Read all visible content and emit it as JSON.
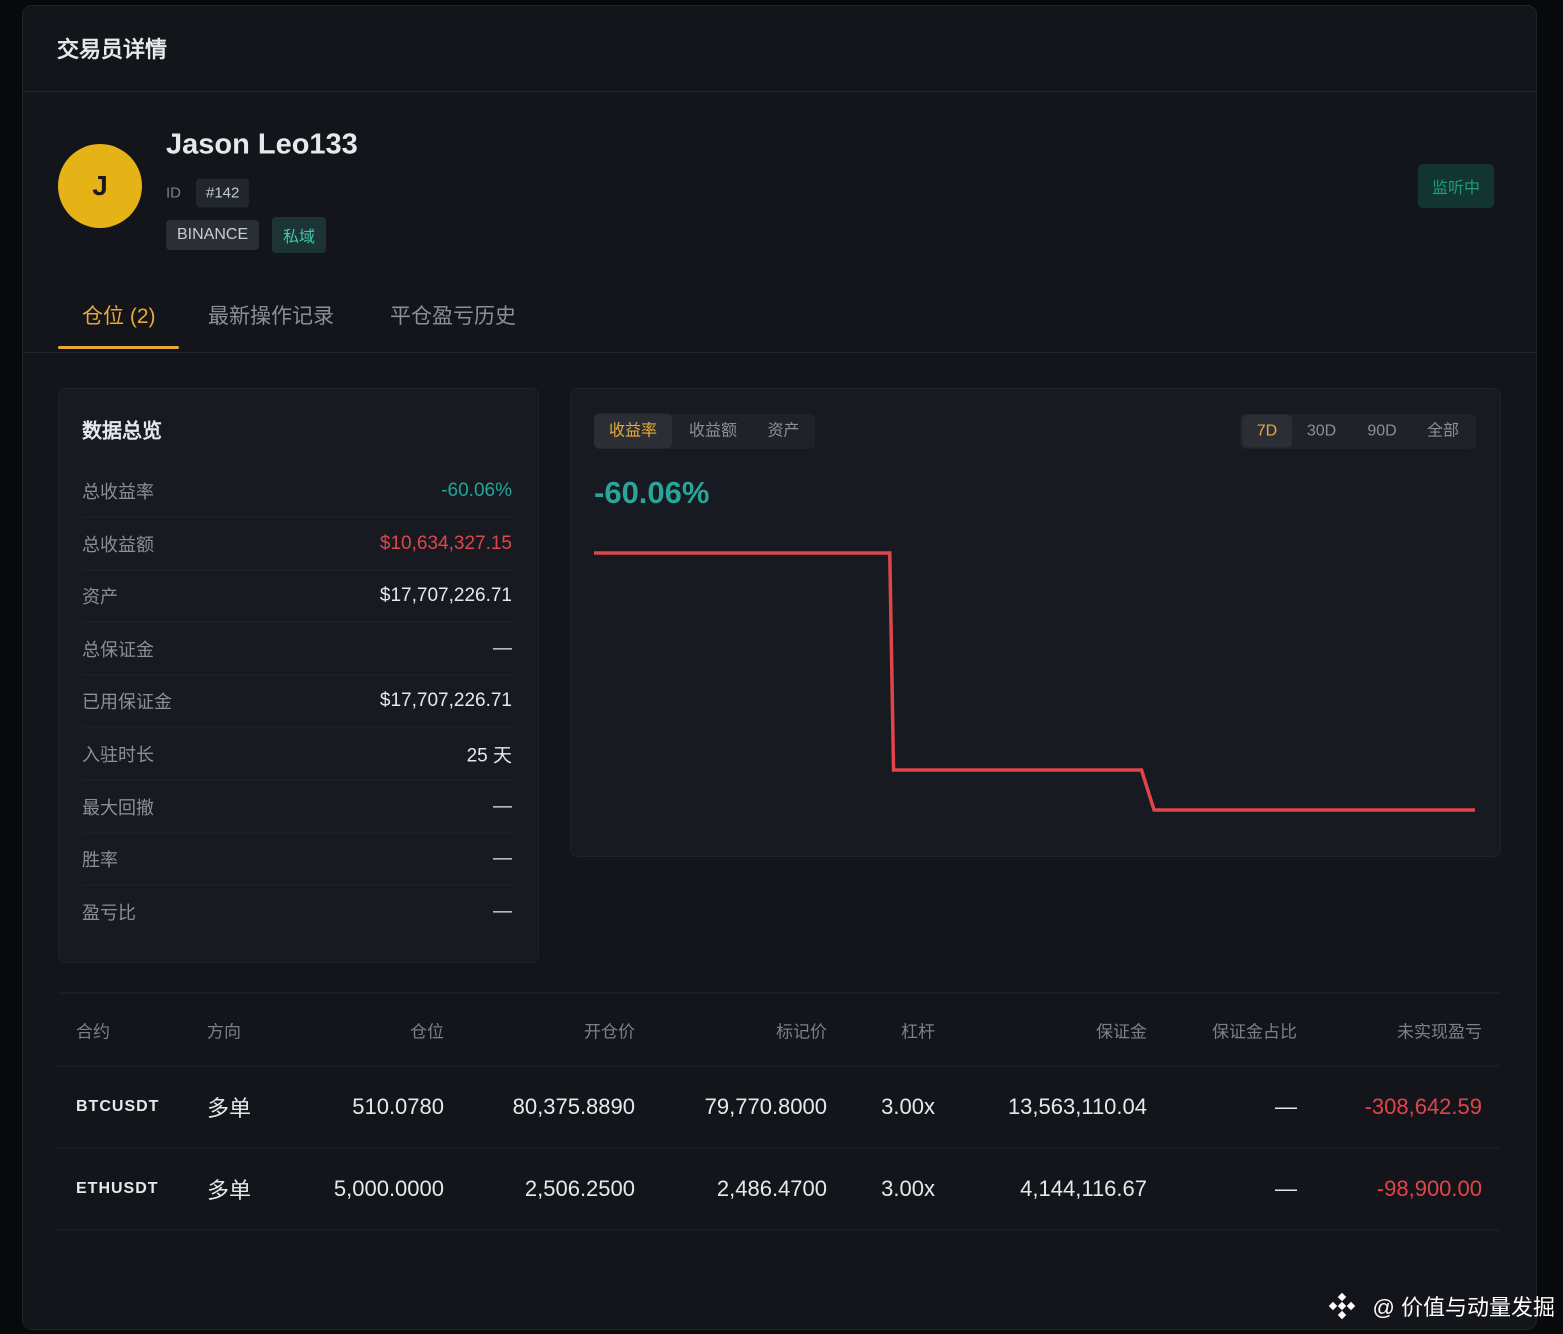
{
  "header": {
    "title": "交易员详情"
  },
  "profile": {
    "avatar": "J",
    "name": "Jason Leo133",
    "id_label": "ID",
    "id": "#142",
    "tags": [
      "BINANCE",
      "私域"
    ],
    "status": "监听中"
  },
  "tabs": [
    "仓位 (2)",
    "最新操作记录",
    "平仓盈亏历史"
  ],
  "overview": {
    "title": "数据总览",
    "rows": [
      [
        "总收益率",
        "-60.06%"
      ],
      [
        "总收益额",
        "$10,634,327.15"
      ],
      [
        "资产",
        "$17,707,226.71"
      ],
      [
        "总保证金",
        "—"
      ],
      [
        "已用保证金",
        "$17,707,226.71"
      ],
      [
        "入驻时长",
        "25 天"
      ],
      [
        "最大回撤",
        "—"
      ],
      [
        "胜率",
        "—"
      ],
      [
        "盈亏比",
        "—"
      ]
    ]
  },
  "chart_panel": {
    "metric_tabs": [
      "收益率",
      "收益额",
      "资产"
    ],
    "range_tabs": [
      "7D",
      "30D",
      "90D",
      "全部"
    ],
    "headline": "-60.06%"
  },
  "chart_data": {
    "type": "line",
    "x": [
      0,
      2.35,
      2.38,
      4.35,
      4.45,
      7
    ],
    "series": [
      {
        "values": [
          0,
          0,
          -50.7,
          -50.7,
          -60.06,
          -60.06
        ],
        "color": "#e0454a"
      }
    ]
  },
  "table": {
    "headers": [
      "合约",
      "方向",
      "仓位",
      "开仓价",
      "标记价",
      "杠杆",
      "保证金",
      "保证金占比",
      "未实现盈亏"
    ],
    "rows": [
      [
        "BTCUSDT",
        "多单",
        "510.0780",
        "80,375.8890",
        "79,770.8000",
        "3.00x",
        "13,563,110.04",
        "—",
        "-308,642.59"
      ],
      [
        "ETHUSDT",
        "多单",
        "5,000.0000",
        "2,506.2500",
        "2,486.4700",
        "3.00x",
        "4,144,116.67",
        "—",
        "-98,900.00"
      ]
    ]
  },
  "watermark": "@ 价值与动量发掘"
}
